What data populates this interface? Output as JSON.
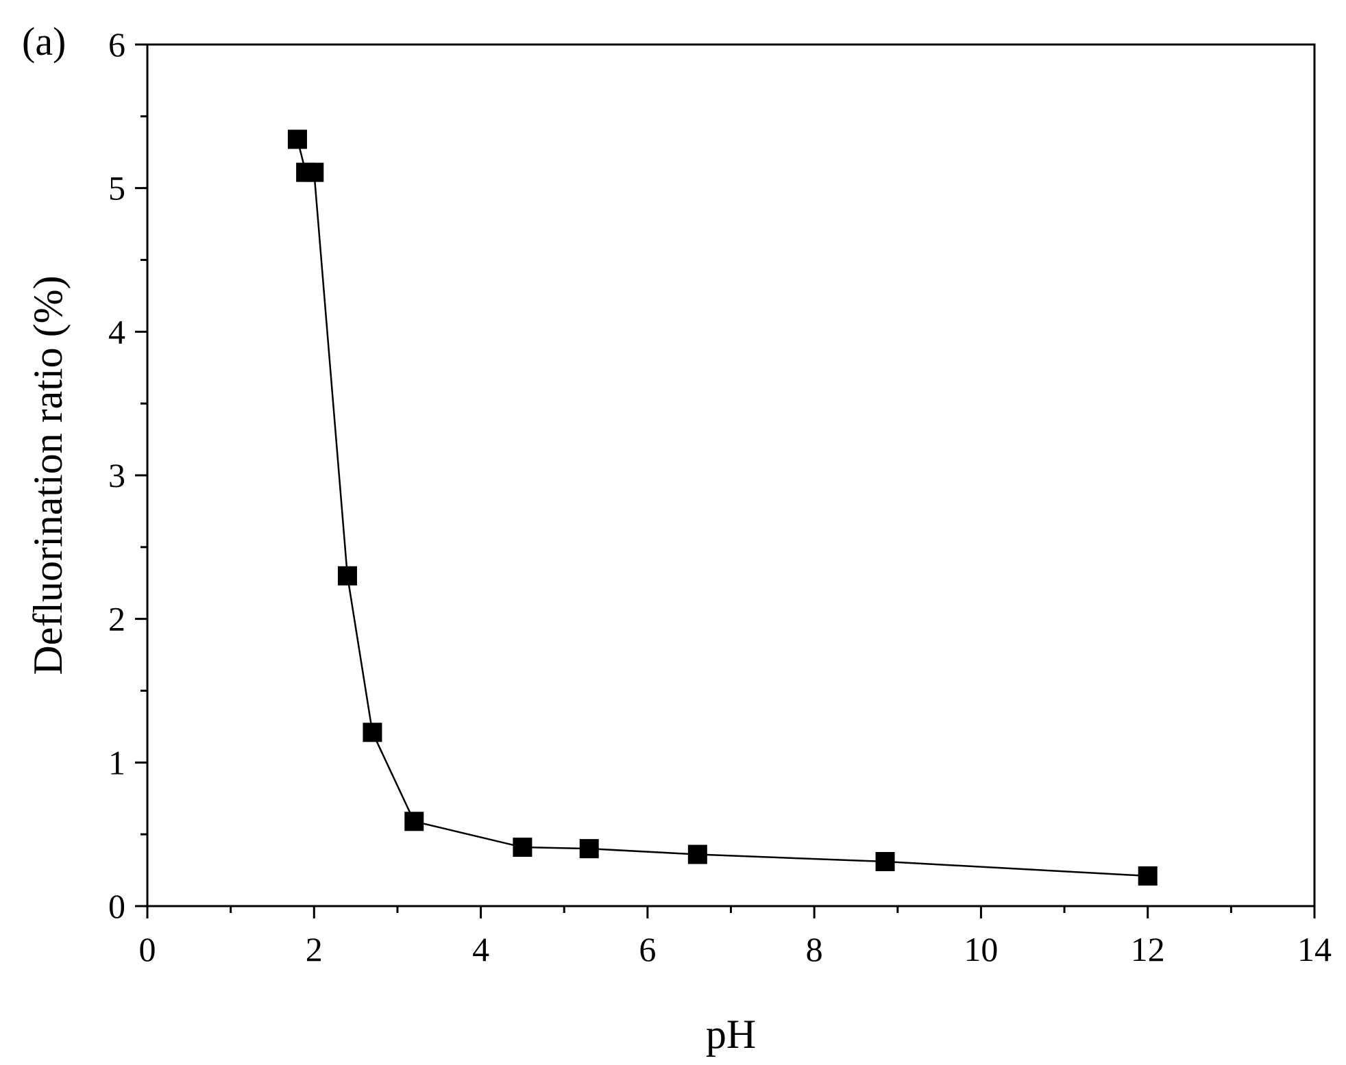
{
  "chart_data": {
    "type": "scatter",
    "panel_label": "(a)",
    "xlabel": "pH",
    "ylabel": "Defluorination ratio (%)",
    "xlim": [
      0,
      14
    ],
    "ylim": [
      0,
      6
    ],
    "x_ticks": [
      0,
      2,
      4,
      6,
      8,
      10,
      12,
      14
    ],
    "x_tick_labels": [
      "0",
      "2",
      "4",
      "6",
      "8",
      "10",
      "12",
      "14"
    ],
    "x_minor_step": 1,
    "y_ticks": [
      0,
      1,
      2,
      3,
      4,
      5,
      6
    ],
    "y_tick_labels": [
      "0",
      "1",
      "2",
      "3",
      "4",
      "5",
      "6"
    ],
    "y_minor_step": 0.5,
    "grid": false,
    "legend": "none",
    "series": [
      {
        "connect_line": true,
        "marker": "square",
        "color": "#000000",
        "points": [
          {
            "x": 1.8,
            "y": 5.34
          },
          {
            "x": 1.9,
            "y": 5.11
          },
          {
            "x": 2.0,
            "y": 5.11
          },
          {
            "x": 2.4,
            "y": 2.3
          },
          {
            "x": 2.7,
            "y": 1.21
          },
          {
            "x": 3.2,
            "y": 0.59
          },
          {
            "x": 4.5,
            "y": 0.41
          },
          {
            "x": 5.3,
            "y": 0.4
          },
          {
            "x": 6.6,
            "y": 0.36
          },
          {
            "x": 8.85,
            "y": 0.31
          },
          {
            "x": 12.0,
            "y": 0.21
          }
        ]
      }
    ]
  }
}
